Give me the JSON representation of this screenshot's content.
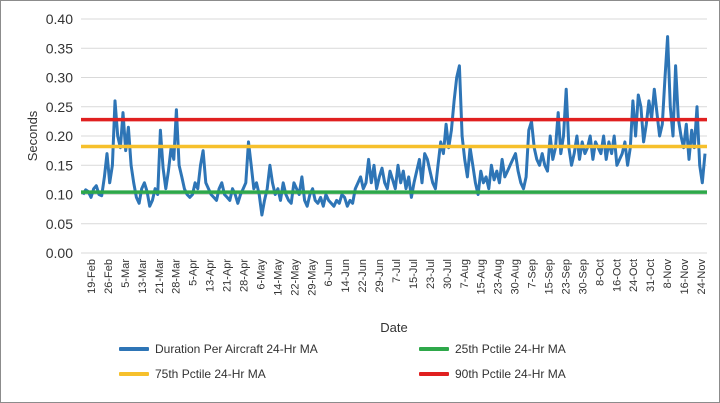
{
  "chart_data": {
    "type": "line",
    "xlabel": "Date",
    "ylabel": "Seconds",
    "ylim": [
      0,
      0.4
    ],
    "y_ticks": [
      "0.00",
      "0.05",
      "0.10",
      "0.15",
      "0.20",
      "0.25",
      "0.30",
      "0.35",
      "0.40"
    ],
    "x_tick_labels": [
      "19-Feb",
      "26-Feb",
      "5-Mar",
      "13-Mar",
      "21-Mar",
      "28-Mar",
      "5-Apr",
      "13-Apr",
      "21-Apr",
      "28-Apr",
      "6-May",
      "14-May",
      "22-May",
      "29-May",
      "6-Jun",
      "14-Jun",
      "22-Jun",
      "29-Jun",
      "7-Jul",
      "15-Jul",
      "23-Jul",
      "30-Jul",
      "7-Aug",
      "15-Aug",
      "23-Aug",
      "30-Aug",
      "7-Sep",
      "15-Sep",
      "23-Sep",
      "30-Sep",
      "8-Oct",
      "16-Oct",
      "24-Oct",
      "31-Oct",
      "8-Nov",
      "16-Nov",
      "24-Nov"
    ],
    "grid": "horizontal",
    "legend_position": "bottom",
    "series": [
      {
        "name": "Duration Per Aircraft 24-Hr MA",
        "color": "#2e75b6",
        "values": [
          0.1,
          0.108,
          0.105,
          0.095,
          0.11,
          0.115,
          0.1,
          0.098,
          0.13,
          0.17,
          0.12,
          0.15,
          0.26,
          0.2,
          0.18,
          0.24,
          0.175,
          0.215,
          0.15,
          0.12,
          0.095,
          0.085,
          0.11,
          0.12,
          0.105,
          0.08,
          0.09,
          0.11,
          0.1,
          0.21,
          0.145,
          0.11,
          0.14,
          0.18,
          0.16,
          0.245,
          0.15,
          0.13,
          0.11,
          0.1,
          0.095,
          0.1,
          0.12,
          0.11,
          0.15,
          0.175,
          0.12,
          0.11,
          0.1,
          0.095,
          0.09,
          0.11,
          0.12,
          0.1,
          0.095,
          0.09,
          0.11,
          0.1,
          0.085,
          0.1,
          0.11,
          0.12,
          0.19,
          0.15,
          0.11,
          0.12,
          0.1,
          0.065,
          0.09,
          0.11,
          0.15,
          0.12,
          0.1,
          0.11,
          0.09,
          0.12,
          0.1,
          0.09,
          0.085,
          0.12,
          0.11,
          0.1,
          0.13,
          0.09,
          0.08,
          0.1,
          0.11,
          0.09,
          0.085,
          0.095,
          0.08,
          0.1,
          0.09,
          0.085,
          0.08,
          0.09,
          0.085,
          0.1,
          0.095,
          0.08,
          0.09,
          0.085,
          0.11,
          0.12,
          0.13,
          0.11,
          0.12,
          0.16,
          0.12,
          0.15,
          0.11,
          0.13,
          0.145,
          0.12,
          0.11,
          0.14,
          0.125,
          0.11,
          0.15,
          0.12,
          0.14,
          0.11,
          0.13,
          0.095,
          0.12,
          0.14,
          0.16,
          0.12,
          0.17,
          0.16,
          0.14,
          0.12,
          0.11,
          0.15,
          0.19,
          0.17,
          0.22,
          0.18,
          0.21,
          0.26,
          0.3,
          0.32,
          0.2,
          0.16,
          0.13,
          0.18,
          0.15,
          0.12,
          0.1,
          0.14,
          0.12,
          0.13,
          0.11,
          0.15,
          0.125,
          0.14,
          0.12,
          0.16,
          0.13,
          0.14,
          0.15,
          0.16,
          0.17,
          0.14,
          0.12,
          0.11,
          0.13,
          0.21,
          0.225,
          0.18,
          0.16,
          0.15,
          0.17,
          0.15,
          0.14,
          0.2,
          0.16,
          0.18,
          0.24,
          0.17,
          0.2,
          0.28,
          0.18,
          0.15,
          0.17,
          0.2,
          0.16,
          0.19,
          0.17,
          0.18,
          0.2,
          0.16,
          0.19,
          0.18,
          0.17,
          0.2,
          0.16,
          0.19,
          0.17,
          0.2,
          0.15,
          0.16,
          0.17,
          0.19,
          0.15,
          0.18,
          0.26,
          0.2,
          0.27,
          0.25,
          0.19,
          0.22,
          0.26,
          0.23,
          0.28,
          0.24,
          0.2,
          0.22,
          0.3,
          0.37,
          0.25,
          0.2,
          0.32,
          0.23,
          0.2,
          0.18,
          0.22,
          0.16,
          0.21,
          0.18,
          0.25,
          0.15,
          0.12,
          0.17
        ]
      },
      {
        "name": "25th Pctile 24-Hr MA",
        "color": "#2ea84a",
        "values": [
          0.104,
          0.104
        ]
      },
      {
        "name": "75th Pctile 24-Hr MA",
        "color": "#f6c02c",
        "values": [
          0.182,
          0.182
        ]
      },
      {
        "name": "90th Pctile 24-Hr MA",
        "color": "#e02020",
        "values": [
          0.228,
          0.228
        ]
      }
    ]
  }
}
